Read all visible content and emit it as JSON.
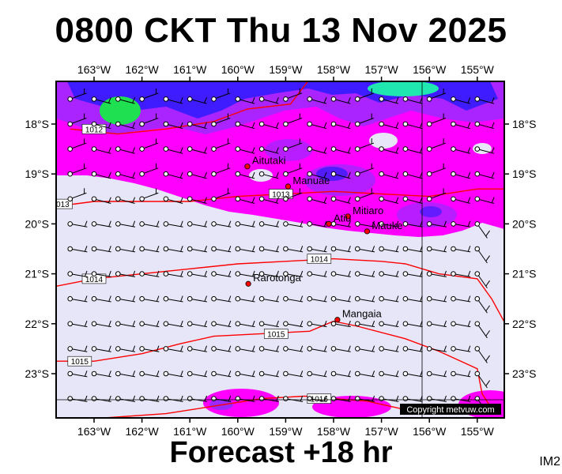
{
  "title": "0800 CKT Thu 13 Nov 2025",
  "subtitle": "Forecast +18 hr",
  "image_id": "IM2",
  "copyright": "Copyright metvuw.com",
  "axes": {
    "lon_labels": [
      "163°W",
      "162°W",
      "161°W",
      "160°W",
      "159°W",
      "158°W",
      "157°W",
      "156°W",
      "155°W"
    ],
    "lat_labels": [
      "18°S",
      "19°S",
      "20°S",
      "21°S",
      "22°S",
      "23°S"
    ]
  },
  "places": [
    {
      "name": "Aitutaki",
      "lon": -159.8,
      "lat": -18.85
    },
    {
      "name": "Manuae",
      "lon": -158.95,
      "lat": -19.25
    },
    {
      "name": "Mitiaro",
      "lon": -157.7,
      "lat": -19.85
    },
    {
      "name": "Atiu",
      "lon": -158.1,
      "lat": -20.0
    },
    {
      "name": "Mauke",
      "lon": -157.3,
      "lat": -20.15
    },
    {
      "name": "Rarotonga",
      "lon": -159.78,
      "lat": -21.2
    },
    {
      "name": "Mangaia",
      "lon": -157.92,
      "lat": -21.92
    }
  ],
  "isobars": [
    {
      "label": "1012",
      "points": [
        [
          -163.5,
          -18.1
        ],
        [
          -162.5,
          -18.2
        ],
        [
          -161.5,
          -18.1
        ],
        [
          -160.5,
          -17.95
        ],
        [
          -159.8,
          -17.7
        ],
        [
          -158.9,
          -17.6
        ],
        [
          -158.5,
          -17.1
        ]
      ]
    },
    {
      "label": "1013",
      "points": [
        [
          -163.8,
          -19.65
        ],
        [
          -163,
          -19.55
        ],
        [
          -162,
          -19.55
        ],
        [
          -161,
          -19.55
        ],
        [
          -160,
          -19.45
        ],
        [
          -159,
          -19.4
        ],
        [
          -158,
          -19.35
        ],
        [
          -157,
          -19.4
        ],
        [
          -156,
          -19.45
        ],
        [
          -155,
          -19.3
        ],
        [
          -154.3,
          -19.3
        ]
      ]
    },
    {
      "label": "1014",
      "points": [
        [
          -163.8,
          -21.25
        ],
        [
          -163,
          -21.1
        ],
        [
          -162,
          -21.0
        ],
        [
          -161,
          -20.9
        ],
        [
          -160,
          -20.8
        ],
        [
          -159,
          -20.75
        ],
        [
          -158,
          -20.7
        ],
        [
          -157,
          -20.75
        ],
        [
          -156.5,
          -20.8
        ],
        [
          -155.8,
          -21.0
        ],
        [
          -155,
          -21.1
        ],
        [
          -154.7,
          -21.5
        ],
        [
          -154.3,
          -22.2
        ]
      ]
    },
    {
      "label": "1015",
      "points": [
        [
          -163.8,
          -22.75
        ],
        [
          -163,
          -22.75
        ],
        [
          -162,
          -22.6
        ],
        [
          -161.2,
          -22.4
        ],
        [
          -160.5,
          -22.25
        ],
        [
          -159.5,
          -22.2
        ],
        [
          -158.5,
          -22.15
        ],
        [
          -158,
          -21.95
        ],
        [
          -157.5,
          -22.05
        ],
        [
          -156.5,
          -22.3
        ],
        [
          -155.8,
          -22.55
        ],
        [
          -155,
          -22.9
        ],
        [
          -154.9,
          -23.4
        ],
        [
          -154.7,
          -23.7
        ]
      ]
    },
    {
      "label": "1016",
      "points": [
        [
          -163,
          -23.9
        ],
        [
          -161.5,
          -23.8
        ],
        [
          -160.5,
          -23.65
        ],
        [
          -159.5,
          -23.5
        ],
        [
          -158.6,
          -23.45
        ],
        [
          -158,
          -23.5
        ],
        [
          -157.3,
          -23.55
        ],
        [
          -156.6,
          -23.7
        ]
      ]
    }
  ],
  "colors": {
    "background": "#e6e6f8",
    "magenta": "#ff00ff",
    "purple": "#9a2aff",
    "blue": "#2b1bff",
    "green": "#1ee050",
    "isobar": "#ff0000",
    "place_marker": "#ff0000"
  }
}
